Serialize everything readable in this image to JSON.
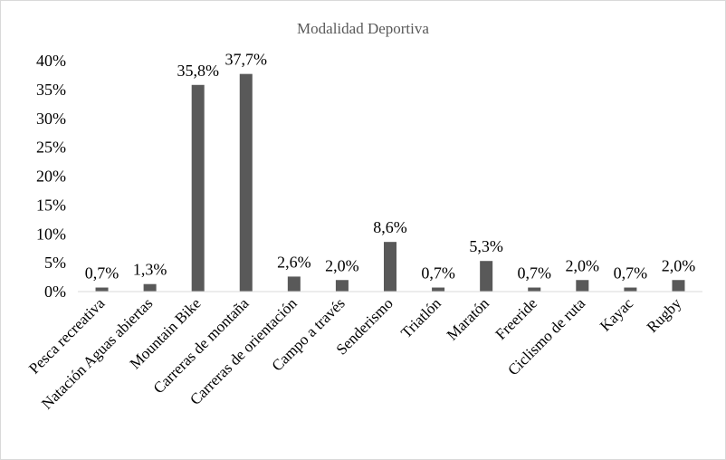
{
  "chart_data": {
    "type": "bar",
    "title": "Modalidad Deportiva",
    "xlabel": "",
    "ylabel": "",
    "categories": [
      "Pesca recreativa",
      "Natación Aguas abiertas",
      "Mountain Bike",
      "Carreras de montaña",
      "Carreras de orientación",
      "Campo a través",
      "Senderismo",
      "Triatlón",
      "Maratón",
      "Freeride",
      "Ciclismo de ruta",
      "Kayac",
      "Rugby"
    ],
    "values": [
      0.7,
      1.3,
      35.8,
      37.7,
      2.6,
      2.0,
      8.6,
      0.7,
      5.3,
      0.7,
      2.0,
      0.7,
      2.0
    ],
    "data_labels": [
      "0,7%",
      "1,3%",
      "35,8%",
      "37,7%",
      "2,6%",
      "2,0%",
      "8,6%",
      "0,7%",
      "5,3%",
      "0,7%",
      "2,0%",
      "0,7%",
      "2,0%"
    ],
    "ylim": [
      0,
      40
    ],
    "yticks": [
      0,
      5,
      10,
      15,
      20,
      25,
      30,
      35,
      40
    ],
    "ytick_labels": [
      "0%",
      "5%",
      "10%",
      "15%",
      "20%",
      "25%",
      "30%",
      "35%",
      "40%"
    ],
    "grid": false,
    "legend": false,
    "colors": {
      "bar": "#595959",
      "axis": "#d9d9d9",
      "title": "#595959"
    }
  }
}
